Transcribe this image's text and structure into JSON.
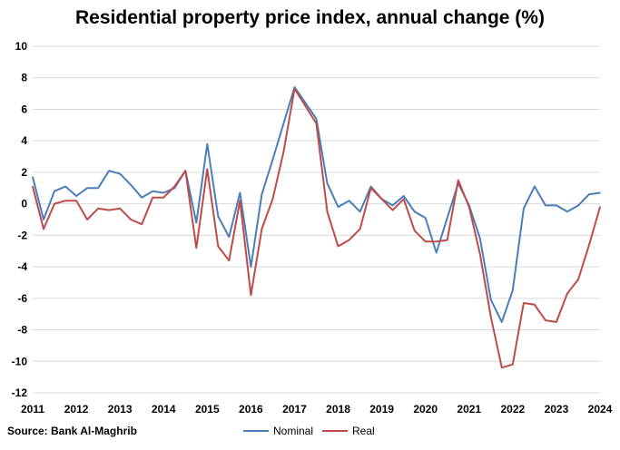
{
  "chart_data": {
    "type": "line",
    "title": "Residential property price index, annual change (%)",
    "source": "Source: Bank Al-Maghrib",
    "ylim": [
      -12,
      10
    ],
    "yticks": [
      10,
      8,
      6,
      4,
      2,
      0,
      -2,
      -4,
      -6,
      -8,
      -10,
      -12
    ],
    "xlim": [
      2011,
      2024
    ],
    "xticks": [
      2011,
      2012,
      2013,
      2014,
      2015,
      2016,
      2017,
      2018,
      2019,
      2020,
      2021,
      2022,
      2023,
      2024
    ],
    "grid": true,
    "legend_position": "bottom",
    "x": [
      2011,
      2011.25,
      2011.5,
      2011.75,
      2012,
      2012.25,
      2012.5,
      2012.75,
      2013,
      2013.25,
      2013.5,
      2013.75,
      2014,
      2014.25,
      2014.5,
      2014.75,
      2015,
      2015.25,
      2015.5,
      2015.75,
      2016,
      2016.25,
      2016.5,
      2016.75,
      2017,
      2017.25,
      2017.5,
      2017.75,
      2018,
      2018.25,
      2018.5,
      2018.75,
      2019,
      2019.25,
      2019.5,
      2019.75,
      2020,
      2020.25,
      2020.5,
      2020.75,
      2021,
      2021.25,
      2021.5,
      2021.75,
      2022,
      2022.25,
      2022.5,
      2022.75,
      2023,
      2023.25,
      2023.5,
      2023.75,
      2024
    ],
    "series": [
      {
        "name": "Nominal",
        "color": "#4A7EBB",
        "values": [
          1.7,
          -1.0,
          0.8,
          1.1,
          0.5,
          1.0,
          1.0,
          2.1,
          1.9,
          1.2,
          0.4,
          0.8,
          0.7,
          1.0,
          2.1,
          -1.2,
          3.8,
          -0.8,
          -2.1,
          0.7,
          -4.0,
          0.6,
          2.8,
          5.1,
          7.4,
          6.4,
          5.4,
          1.3,
          -0.2,
          0.2,
          -0.5,
          1.1,
          0.3,
          -0.1,
          0.5,
          -0.5,
          -0.9,
          -3.1,
          -0.9,
          1.3,
          -0.1,
          -2.2,
          -6.1,
          -7.5,
          -5.5,
          -0.3,
          1.1,
          -0.1,
          -0.1,
          -0.5,
          -0.1,
          0.6,
          0.7
        ]
      },
      {
        "name": "Real",
        "color": "#BE4B48",
        "values": [
          1.1,
          -1.6,
          0.0,
          0.2,
          0.2,
          -1.0,
          -0.3,
          -0.4,
          -0.3,
          -1.0,
          -1.3,
          0.4,
          0.4,
          1.1,
          2.1,
          -2.8,
          2.2,
          -2.7,
          -3.6,
          0.2,
          -5.8,
          -1.6,
          0.3,
          3.3,
          7.3,
          6.2,
          5.1,
          -0.5,
          -2.7,
          -2.3,
          -1.6,
          1.0,
          0.3,
          -0.4,
          0.3,
          -1.7,
          -2.4,
          -2.4,
          -2.3,
          1.5,
          -0.2,
          -3.2,
          -7.2,
          -10.4,
          -10.2,
          -6.3,
          -6.4,
          -7.4,
          -7.5,
          -5.7,
          -4.8,
          -2.6,
          -0.2
        ]
      }
    ]
  }
}
